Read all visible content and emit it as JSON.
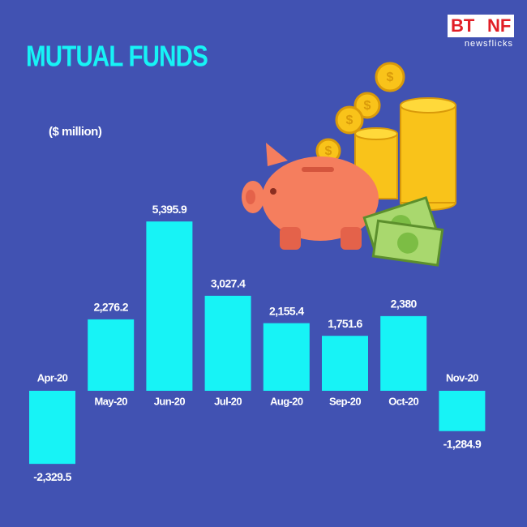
{
  "logo": {
    "left": "BT",
    "right": "NF",
    "tagline": "newsflicks"
  },
  "chart_data": {
    "type": "bar",
    "title": "MUTUAL FUNDS",
    "subtitle": "($ million)",
    "categories": [
      "Apr-20",
      "May-20",
      "Jun-20",
      "Jul-20",
      "Aug-20",
      "Sep-20",
      "Oct-20",
      "Nov-20"
    ],
    "values": [
      -2329.5,
      2276.2,
      5395.9,
      3027.4,
      2155.4,
      1751.6,
      2380,
      -1284.9
    ],
    "value_labels": [
      "-2,329.5",
      "2,276.2",
      "5,395.9",
      "3,027.4",
      "2,155.4",
      "1,751.6",
      "2,380",
      "-1,284.9"
    ],
    "color": "#17f3f6"
  }
}
